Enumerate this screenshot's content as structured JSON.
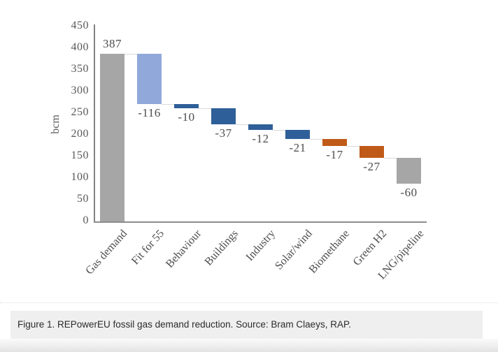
{
  "chart_data": {
    "type": "bar",
    "subtype": "waterfall",
    "title": "",
    "ylabel": "bcm",
    "xlabel": "",
    "categories": [
      "Gas demand",
      "Fit for 55",
      "Behaviour",
      "Buildings",
      "Industry",
      "Solar/wind",
      "Biomethane",
      "Green H2",
      "LNG/pipeline"
    ],
    "values": [
      387,
      -116,
      -10,
      -37,
      -12,
      -21,
      -17,
      -27,
      -60
    ],
    "value_labels": [
      "387",
      "-116",
      "-10",
      "-37",
      "-12",
      "-21",
      "-17",
      "-27",
      "-60"
    ],
    "bar_colors": [
      "gray",
      "lightBlue",
      "blue",
      "blue",
      "blue",
      "blue",
      "orange",
      "orange",
      "gray"
    ],
    "ylim": [
      0,
      450
    ],
    "y_ticks": [
      0,
      50,
      100,
      150,
      200,
      250,
      300,
      350,
      400,
      450
    ],
    "grid": "off",
    "legend": "none",
    "connectors": true
  },
  "colors": {
    "gray": "#a6a6a6",
    "lightBlue": "#90a9da",
    "blue": "#2f5f98",
    "orange": "#c05a18",
    "connector": "#d9d9d9",
    "axis": "#828282",
    "tick_text": "#595959",
    "label_text": "#4d4d4d",
    "caption_bg": "#efefef"
  },
  "caption": {
    "text": "Figure 1. REPowerEU fossil gas demand reduction. Source: Bram Claeys, RAP."
  }
}
